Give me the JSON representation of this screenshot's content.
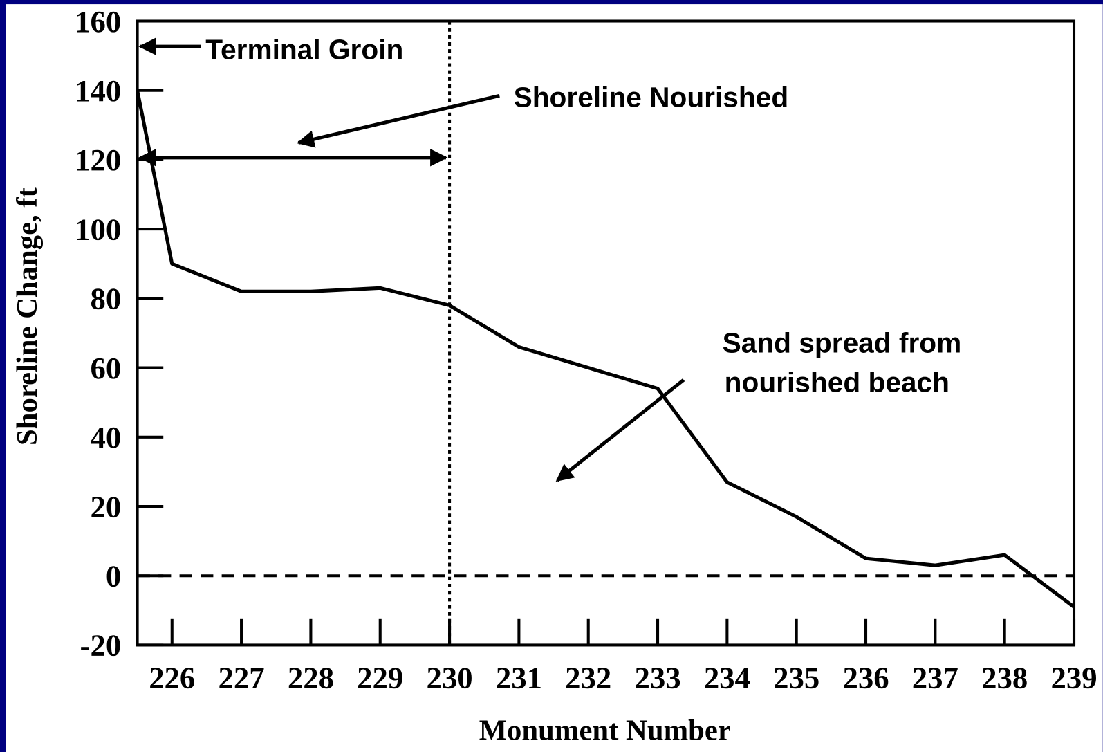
{
  "chart_data": {
    "type": "line",
    "xlabel": "Monument Number",
    "ylabel": "Shoreline Change, ft",
    "x": [
      225.5,
      226,
      227,
      228,
      229,
      230,
      231,
      232,
      233,
      234,
      235,
      236,
      237,
      238,
      239
    ],
    "series": [
      {
        "color": "#000000",
        "values": [
          140,
          90,
          82,
          82,
          83,
          78,
          66,
          60,
          54,
          27,
          17,
          5,
          3,
          6,
          -9
        ]
      }
    ],
    "xlim": [
      225.5,
      239
    ],
    "xticks": [
      226,
      227,
      228,
      229,
      230,
      231,
      232,
      233,
      234,
      235,
      236,
      237,
      238,
      239
    ],
    "ylim": [
      -20,
      160
    ],
    "yticks": [
      -20,
      0,
      20,
      40,
      60,
      80,
      100,
      120,
      140,
      160
    ],
    "hline": 0,
    "vline": 230,
    "annotations": [
      "Terminal Groin",
      "Shoreline Nourished",
      [
        "Sand spread from",
        "nourished beach"
      ]
    ]
  }
}
